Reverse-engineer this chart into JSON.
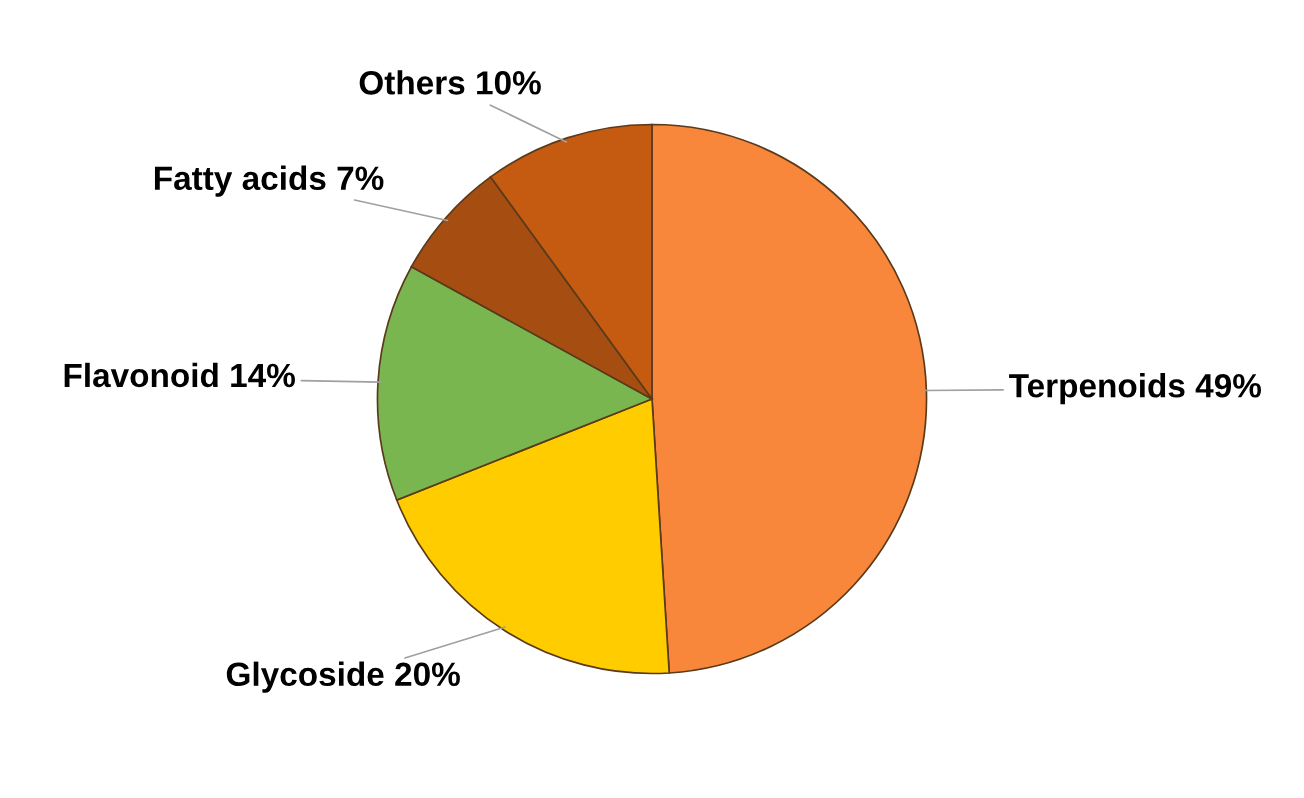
{
  "chart_data": {
    "type": "pie",
    "categories": [
      "Terpenoids",
      "Glycoside",
      "Flavonoid",
      "Fatty acids",
      "Others"
    ],
    "values": [
      49,
      20,
      14,
      7,
      10
    ],
    "value_labels": [
      "49%",
      "20%",
      "14%",
      "7%",
      "10%"
    ],
    "colors": [
      "#f8873c",
      "#ffcc00",
      "#7ab650",
      "#a64d12",
      "#c55a11"
    ]
  }
}
